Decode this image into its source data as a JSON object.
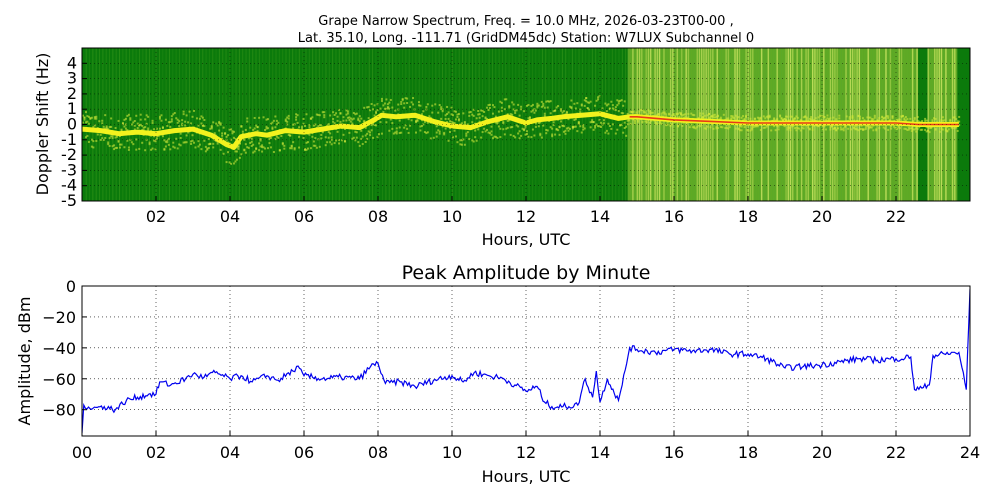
{
  "chart_data": [
    {
      "type": "heatmap",
      "title_line1": "Grape Narrow Spectrum, Freq. = 10.0 MHz, 2026-03-23T00-00 ,",
      "title_line2": "Lat.  35.10, Long. -111.71 (GridDM45dc) Station: W7LUX Subchannel 0",
      "xlabel": "Hours, UTC",
      "ylabel": "Doppler Shift (Hz)",
      "xlim": [
        0,
        24
      ],
      "ylim": [
        -5,
        5
      ],
      "x_ticks": [
        2,
        4,
        6,
        8,
        10,
        12,
        14,
        16,
        18,
        20,
        22
      ],
      "x_tick_labels": [
        "02",
        "04",
        "06",
        "08",
        "10",
        "12",
        "14",
        "16",
        "18",
        "20",
        "22"
      ],
      "y_ticks": [
        4,
        3,
        2,
        1,
        0,
        -1,
        -2,
        -3,
        -4,
        -5
      ],
      "y_tick_labels": [
        "4",
        "3",
        "2",
        "1",
        "0",
        "-1",
        "-2",
        "-3",
        "-4",
        "-5"
      ],
      "grid": true,
      "colors": {
        "background": "#0b7a0b",
        "noise": "#a8d23a",
        "trace": "#f2f21e",
        "peak": "#e83a1a"
      },
      "noisy_intervals": [
        [
          14.75,
          22.6
        ],
        [
          22.85,
          23.65
        ]
      ],
      "dark_band": [
        22.6,
        22.85
      ],
      "doppler_trace": {
        "x": [
          0,
          0.5,
          1,
          1.5,
          2,
          2.5,
          3,
          3.5,
          3.9,
          4.1,
          4.3,
          4.7,
          5,
          5.5,
          6,
          6.5,
          7,
          7.5,
          7.9,
          8.1,
          8.5,
          9,
          9.5,
          10,
          10.5,
          11,
          11.5,
          12,
          12.3,
          12.7,
          13,
          14,
          14.5,
          14.8,
          15,
          16,
          17,
          18,
          19,
          20,
          21,
          22,
          22.6,
          23,
          23.7
        ],
        "y": [
          -0.3,
          -0.4,
          -0.6,
          -0.5,
          -0.6,
          -0.4,
          -0.3,
          -0.7,
          -1.3,
          -1.5,
          -0.8,
          -0.6,
          -0.7,
          -0.4,
          -0.5,
          -0.3,
          -0.1,
          -0.2,
          0.3,
          0.6,
          0.5,
          0.6,
          0.2,
          -0.1,
          -0.2,
          0.2,
          0.5,
          0.1,
          0.3,
          0.4,
          0.5,
          0.7,
          0.4,
          0.5,
          0.5,
          0.3,
          0.2,
          0.1,
          0.1,
          0.1,
          0.1,
          0.1,
          0,
          0,
          0
        ]
      }
    },
    {
      "type": "line",
      "title": "Peak Amplitude by Minute",
      "xlabel": "Hours, UTC",
      "ylabel": "Amplitude, dBm",
      "xlim": [
        0,
        24
      ],
      "ylim": [
        -97,
        0
      ],
      "x_ticks": [
        0,
        2,
        4,
        6,
        8,
        10,
        12,
        14,
        16,
        18,
        20,
        22,
        24
      ],
      "x_tick_labels": [
        "00",
        "02",
        "04",
        "06",
        "08",
        "10",
        "12",
        "14",
        "16",
        "18",
        "20",
        "22",
        "24"
      ],
      "y_ticks": [
        0,
        -20,
        -40,
        -60,
        -80
      ],
      "y_tick_labels": [
        "0",
        "−20",
        "−40",
        "−60",
        "−80"
      ],
      "grid": true,
      "line_color": "#0000ee",
      "series": [
        {
          "x": [
            0,
            0.05,
            0.3,
            0.6,
            0.9,
            1.2,
            1.5,
            1.8,
            2.0,
            2.1,
            2.4,
            2.8,
            3.0,
            3.3,
            3.6,
            4.0,
            4.3,
            4.6,
            5.0,
            5.3,
            5.7,
            5.8,
            6.0,
            6.5,
            7.0,
            7.5,
            7.8,
            8.0,
            8.2,
            8.6,
            9.0,
            9.5,
            10.0,
            10.3,
            10.6,
            11.0,
            11.4,
            11.7,
            12.0,
            12.3,
            12.5,
            12.7,
            13.0,
            13.4,
            13.6,
            13.8,
            13.9,
            14.0,
            14.2,
            14.5,
            14.6,
            14.8,
            15.0,
            15.5,
            16.0,
            16.5,
            17.0,
            17.5,
            18.0,
            18.5,
            19.0,
            19.5,
            20.0,
            20.5,
            21.0,
            21.5,
            22.0,
            22.4,
            22.5,
            22.7,
            22.9,
            23.0,
            23.3,
            23.7,
            23.9,
            24.0
          ],
          "y": [
            -95,
            -77,
            -79,
            -78,
            -80,
            -74,
            -72,
            -70,
            -70,
            -62,
            -64,
            -60,
            -57,
            -59,
            -56,
            -60,
            -58,
            -62,
            -58,
            -61,
            -55,
            -52,
            -58,
            -60,
            -59,
            -60,
            -52,
            -50,
            -63,
            -62,
            -65,
            -61,
            -58,
            -62,
            -56,
            -58,
            -60,
            -64,
            -68,
            -65,
            -75,
            -78,
            -78,
            -77,
            -60,
            -72,
            -55,
            -75,
            -60,
            -74,
            -64,
            -40,
            -41,
            -43,
            -41,
            -42,
            -41,
            -44,
            -44,
            -47,
            -53,
            -52,
            -51,
            -49,
            -47,
            -48,
            -47,
            -46,
            -67,
            -66,
            -64,
            -45,
            -44,
            -43,
            -67,
            -2
          ]
        }
      ]
    }
  ]
}
